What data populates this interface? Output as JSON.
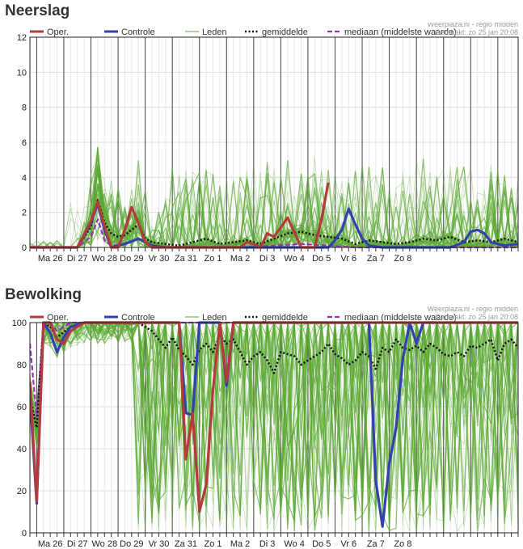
{
  "colors": {
    "oper": "#b33b3b",
    "controle": "#3340b0",
    "leden": "#5aa832",
    "gemiddelde": "#111111",
    "mediaan": "#9b30b8",
    "grid": "#dddddd",
    "daygrid": "#444444"
  },
  "legend": {
    "oper": "Oper.",
    "controle": "Controle",
    "leden": "Leden",
    "gemiddelde": "gemiddelde",
    "mediaan": "mediaan (middelste waarde)"
  },
  "source": {
    "line1": "Weerplaza.nl - regio midden",
    "line2": "Gemaakt: zo 25 jan 20:08"
  },
  "chart_data": [
    {
      "type": "line",
      "title": "Neerslag",
      "ylim": [
        0,
        12
      ],
      "yticks": [
        0,
        2,
        4,
        6,
        8,
        10,
        12
      ],
      "days": [
        "Ma 26",
        "Di 27",
        "Wo 28",
        "Do 29",
        "Vr 30",
        "Za 31",
        "Zo 1",
        "Ma 2",
        "Di 3",
        "Wo 4",
        "Do 5",
        "Vr 6",
        "Za 7",
        "Zo 8"
      ],
      "x_unit": "6-hour steps from zo 25 jan 18:00",
      "series": [
        {
          "name": "Oper.",
          "x": [
            0,
            4,
            7,
            9,
            10,
            11,
            12,
            13,
            14,
            15,
            16,
            17,
            18,
            20,
            24,
            28,
            31,
            32,
            33,
            34,
            35,
            36,
            38,
            40,
            41,
            42,
            43,
            44
          ],
          "values": [
            0,
            0,
            0,
            1.5,
            2.6,
            1.2,
            0,
            0,
            1.0,
            2.3,
            1.4,
            0.3,
            0,
            0,
            0,
            0,
            0,
            0.3,
            0.2,
            0,
            0.8,
            0.6,
            1.7,
            0,
            0,
            0,
            1.6,
            3.7
          ]
        },
        {
          "name": "Controle",
          "x": [
            0,
            4,
            7,
            9,
            10,
            11,
            12,
            14,
            16,
            18,
            20,
            24,
            28,
            32,
            36,
            40,
            44,
            45,
            46,
            47,
            48,
            49,
            50,
            52,
            56,
            60,
            62,
            64,
            65,
            66,
            67,
            68,
            70,
            72
          ],
          "values": [
            0,
            0,
            0,
            1.4,
            2.5,
            1.0,
            0,
            0.2,
            0.5,
            0.1,
            0,
            0,
            0,
            0,
            0,
            0,
            0,
            0.4,
            1.0,
            2.2,
            1.3,
            0.5,
            0.1,
            0,
            0,
            0,
            0,
            0.3,
            0.9,
            1.0,
            0.8,
            0.3,
            0.1,
            0.2
          ]
        },
        {
          "name": "gemiddelde",
          "x": [
            0,
            4,
            7,
            9,
            10,
            11,
            12,
            13,
            14,
            15,
            16,
            17,
            18,
            20,
            22,
            24,
            26,
            28,
            30,
            32,
            34,
            36,
            38,
            40,
            42,
            44,
            46,
            48,
            50,
            52,
            54,
            56,
            58,
            60,
            62,
            64,
            66,
            68,
            70,
            72
          ],
          "values": [
            0,
            0,
            0,
            1.2,
            2.7,
            1.4,
            0.8,
            0.6,
            0.7,
            1.0,
            1.3,
            0.5,
            0.3,
            0.2,
            0.1,
            0.3,
            0.5,
            0.2,
            0.3,
            0.4,
            0.2,
            0.5,
            0.8,
            0.9,
            0.7,
            0.6,
            0.5,
            0.2,
            0.4,
            0.3,
            0.2,
            0.3,
            0.5,
            0.4,
            0.6,
            0.3,
            0.4,
            0.3,
            0.5,
            0.3
          ]
        },
        {
          "name": "mediaan (middelste waarde)",
          "x": [
            0,
            4,
            7,
            9,
            10,
            11,
            12,
            14,
            16,
            18,
            20,
            24,
            28,
            32,
            36,
            40,
            44,
            48,
            52,
            56,
            60,
            64,
            68,
            72
          ],
          "values": [
            0,
            0,
            0,
            0.6,
            1.6,
            0.4,
            0.1,
            0.2,
            0.5,
            0.1,
            0,
            0,
            0,
            0,
            0.1,
            0.2,
            0.1,
            0,
            0,
            0,
            0,
            0,
            0,
            0
          ]
        }
      ]
    },
    {
      "type": "line",
      "title": "Bewolking",
      "ylim": [
        0,
        100
      ],
      "yticks": [
        0,
        20,
        40,
        60,
        80,
        100
      ],
      "days": [
        "Ma 26",
        "Di 27",
        "Wo 28",
        "Do 29",
        "Vr 30",
        "Za 31",
        "Zo 1",
        "Ma 2",
        "Di 3",
        "Wo 4",
        "Do 5",
        "Vr 6",
        "Za 7",
        "Zo 8"
      ],
      "x_unit": "6-hour steps from zo 25 jan 18:00",
      "series": [
        {
          "name": "Oper.",
          "x": [
            0,
            1,
            2,
            3,
            4,
            5,
            6,
            8,
            12,
            16,
            20,
            22,
            23,
            24,
            25,
            26,
            27,
            28,
            29,
            30,
            31,
            32,
            36,
            40,
            48,
            56,
            64,
            72
          ],
          "values": [
            72,
            15,
            100,
            100,
            92,
            90,
            96,
            100,
            100,
            100,
            100,
            100,
            35,
            57,
            10,
            23,
            68,
            100,
            72,
            100,
            100,
            100,
            100,
            100,
            100,
            100,
            100,
            100
          ]
        },
        {
          "name": "Controle",
          "x": [
            0,
            1,
            2,
            3,
            4,
            5,
            6,
            8,
            12,
            16,
            20,
            22,
            23,
            24,
            25,
            26,
            28,
            29,
            30,
            32,
            36,
            40,
            44,
            48,
            50,
            51,
            52,
            53,
            54,
            55,
            56,
            57,
            58,
            59,
            60,
            64,
            68,
            72
          ],
          "values": [
            66,
            14,
            100,
            95,
            86,
            93,
            98,
            100,
            100,
            100,
            100,
            100,
            57,
            56,
            100,
            100,
            100,
            70,
            100,
            100,
            100,
            100,
            100,
            100,
            100,
            25,
            3,
            33,
            50,
            83,
            100,
            90,
            100,
            100,
            100,
            100,
            100,
            100
          ]
        },
        {
          "name": "gemiddelde",
          "x": [
            0,
            1,
            2,
            3,
            4,
            6,
            8,
            12,
            16,
            18,
            19,
            20,
            21,
            22,
            23,
            24,
            25,
            26,
            27,
            28,
            29,
            30,
            31,
            32,
            33,
            34,
            35,
            36,
            37,
            38,
            39,
            40,
            41,
            42,
            43,
            44,
            45,
            46,
            47,
            48,
            49,
            50,
            51,
            52,
            53,
            54,
            55,
            56,
            57,
            58,
            59,
            60,
            61,
            62,
            63,
            64,
            65,
            66,
            67,
            68,
            69,
            70,
            71,
            72
          ],
          "values": [
            65,
            50,
            100,
            98,
            93,
            98,
            100,
            100,
            100,
            96,
            92,
            88,
            93,
            87,
            84,
            80,
            87,
            90,
            86,
            94,
            90,
            92,
            86,
            80,
            84,
            86,
            82,
            76,
            86,
            85,
            84,
            80,
            82,
            84,
            86,
            90,
            85,
            83,
            80,
            82,
            86,
            84,
            78,
            88,
            86,
            92,
            88,
            87,
            89,
            86,
            90,
            88,
            85,
            84,
            86,
            84,
            89,
            88,
            90,
            92,
            82,
            90,
            92,
            88
          ]
        },
        {
          "name": "mediaan (middelste waarde)",
          "x": [
            0,
            1,
            2,
            3,
            4,
            6,
            8,
            12,
            16,
            20,
            24,
            28,
            32,
            36,
            40,
            44,
            48,
            52,
            56,
            60,
            64,
            68,
            72
          ],
          "values": [
            90,
            55,
            100,
            100,
            96,
            100,
            100,
            100,
            100,
            100,
            100,
            100,
            100,
            100,
            100,
            100,
            100,
            100,
            100,
            100,
            100,
            100,
            100
          ]
        }
      ]
    }
  ],
  "panels": [
    {
      "title": "Neerslag"
    },
    {
      "title": "Bewolking"
    }
  ]
}
